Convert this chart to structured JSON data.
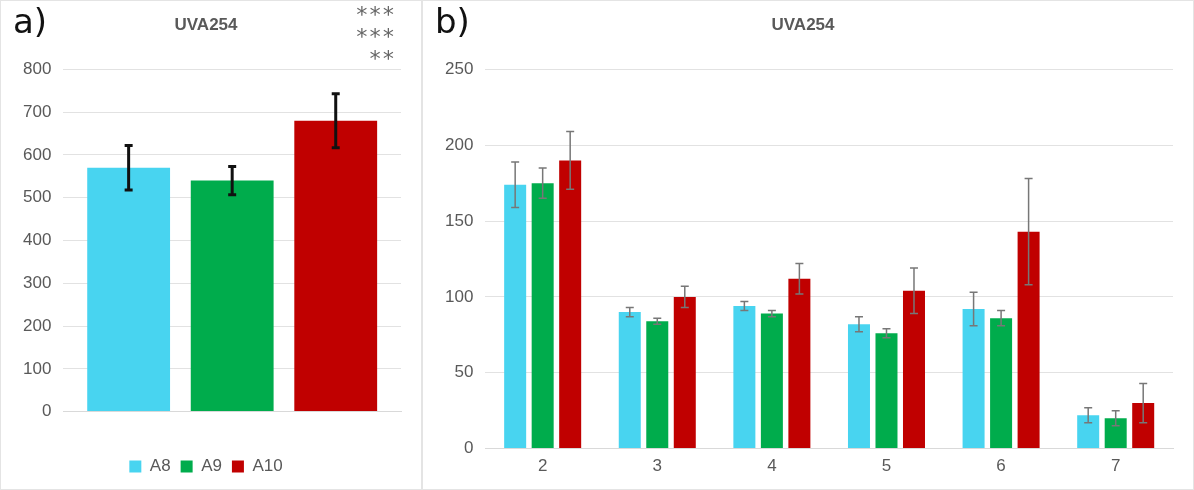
{
  "chart_data": [
    {
      "type": "bar",
      "title": "UVA254",
      "categories": [
        null
      ],
      "series": [
        {
          "name": "A8",
          "color": "#48d4f0",
          "values": [
            570
          ],
          "errors": [
            52
          ]
        },
        {
          "name": "A9",
          "color": "#00ac4c",
          "values": [
            540
          ],
          "errors": [
            33
          ]
        },
        {
          "name": "A10",
          "color": "#c00000",
          "values": [
            680
          ],
          "errors": [
            63
          ]
        }
      ],
      "ylim": [
        0,
        800
      ],
      "yticks": [
        0,
        100,
        200,
        300,
        400,
        500,
        600,
        700,
        800
      ],
      "grid": "y",
      "legend": "bottom",
      "annotations": [
        "a)",
        "***",
        "***",
        "**"
      ]
    },
    {
      "type": "bar",
      "title": "UVA254",
      "categories": [
        "2",
        "3",
        "4",
        "5",
        "6",
        "7"
      ],
      "series": [
        {
          "color": "#48d4f0",
          "values": [
            174,
            90,
            94,
            82,
            92,
            22
          ],
          "errors": [
            15,
            3,
            3,
            5,
            11,
            5
          ]
        },
        {
          "color": "#00ac4c",
          "values": [
            175,
            84,
            89,
            76,
            86,
            20
          ],
          "errors": [
            10,
            2,
            2,
            3,
            5,
            5
          ]
        },
        {
          "color": "#c00000",
          "values": [
            190,
            100,
            112,
            104,
            143,
            30
          ],
          "errors": [
            19,
            7,
            10,
            15,
            35,
            13
          ]
        }
      ],
      "ylim": [
        0,
        250
      ],
      "yticks": [
        0,
        50,
        100,
        150,
        200,
        250
      ],
      "grid": "y",
      "annotations": [
        "b)"
      ]
    }
  ]
}
